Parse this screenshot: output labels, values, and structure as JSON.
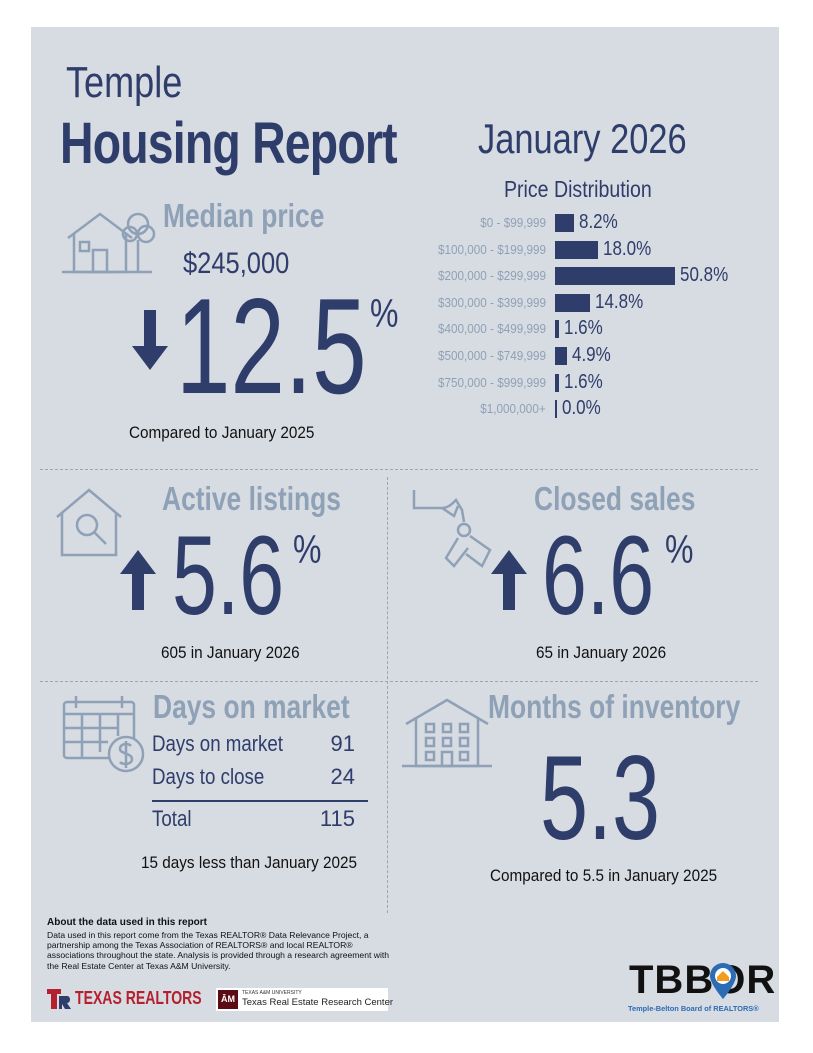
{
  "header": {
    "city": "Temple",
    "title": "Housing Report",
    "month": "January 2026"
  },
  "median_price": {
    "label": "Median price",
    "value": "$245,000",
    "direction": "down",
    "change": "12.5",
    "unit": "%",
    "note": "Compared to January 2025",
    "icon": "house-tree-icon"
  },
  "price_distribution": {
    "title": "Price Distribution",
    "rows": [
      {
        "range": "$0 - $99,999",
        "value": "8.2%",
        "pct": 8.2
      },
      {
        "range": "$100,000 - $199,999",
        "value": "18.0%",
        "pct": 18.0
      },
      {
        "range": "$200,000 - $299,999",
        "value": "50.8%",
        "pct": 50.8
      },
      {
        "range": "$300,000 - $399,999",
        "value": "14.8%",
        "pct": 14.8
      },
      {
        "range": "$400,000 - $499,999",
        "value": "1.6%",
        "pct": 1.6
      },
      {
        "range": "$500,000 - $749,999",
        "value": "4.9%",
        "pct": 4.9
      },
      {
        "range": "$750,000 - $999,999",
        "value": "1.6%",
        "pct": 1.6
      },
      {
        "range": "$1,000,000+",
        "value": "0.0%",
        "pct": 0.0
      }
    ]
  },
  "active_listings": {
    "label": "Active listings",
    "direction": "up",
    "change": "5.6",
    "unit": "%",
    "note": "605 in January 2026",
    "icon": "house-search-icon"
  },
  "closed_sales": {
    "label": "Closed sales",
    "direction": "up",
    "change": "6.6",
    "unit": "%",
    "note": "65 in January 2026",
    "icon": "hand-keys-icon"
  },
  "days_on_market": {
    "label": "Days on market",
    "rows": [
      {
        "label": "Days on market",
        "value": "91"
      },
      {
        "label": "Days to close",
        "value": "24"
      }
    ],
    "total_label": "Total",
    "total_value": "115",
    "note": "15 days less than January 2025",
    "icon": "calendar-dollar-icon"
  },
  "months_inventory": {
    "label": "Months of inventory",
    "value": "5.3",
    "note": "Compared to 5.5 in January 2025",
    "icon": "apartment-building-icon"
  },
  "footer": {
    "about_title": "About the data used in this report",
    "about_text": "Data used in this report come from the Texas REALTOR® Data Relevance Project, a partnership among the Texas Association of REALTORS® and local REALTOR® associations throughout the state. Analysis is provided through a research agreement with the Real Estate Center at Texas A&M University.",
    "texas_realtors": "TEXAS REALTORS",
    "tamu_small": "TEXAS A&M UNIVERSITY",
    "tamu_center": "Texas Real Estate Research Center",
    "tbbor": "TBBOR",
    "tbbor_sub": "Temple-Belton Board of REALTORS®"
  },
  "colors": {
    "navy": "#2f3d6b",
    "muted": "#8fa1b6",
    "panel": "#d7dbe2"
  }
}
